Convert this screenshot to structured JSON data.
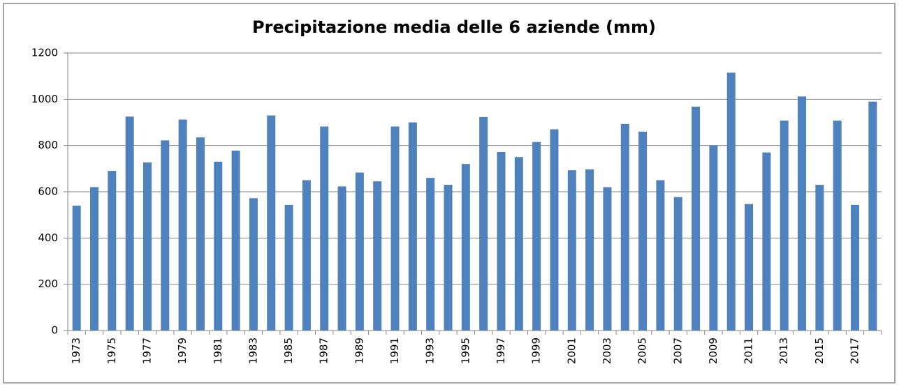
{
  "chart_data": {
    "type": "bar",
    "title": "Precipitazione media delle 6 aziende (mm)",
    "categories": [
      "1973",
      null,
      "1975",
      null,
      "1977",
      null,
      "1979",
      null,
      "1981",
      null,
      "1983",
      null,
      "1985",
      null,
      "1987",
      null,
      "1989",
      null,
      "1991",
      null,
      "1993",
      null,
      "1995",
      null,
      "1997",
      null,
      "1999",
      null,
      "2001",
      null,
      "2003",
      null,
      "2005",
      null,
      "2007",
      null,
      "2009",
      null,
      "2011",
      null,
      "2013",
      null,
      "2015",
      null,
      "2017",
      null
    ],
    "values": [
      540,
      620,
      690,
      925,
      727,
      822,
      912,
      835,
      730,
      778,
      572,
      930,
      543,
      650,
      882,
      623,
      683,
      645,
      882,
      900,
      660,
      630,
      720,
      923,
      772,
      750,
      815,
      870,
      693,
      697,
      620,
      893,
      860,
      650,
      577,
      968,
      800,
      1115,
      547,
      770,
      908,
      1012,
      630,
      908,
      543,
      990
    ],
    "color": "#4f81bd",
    "ylim": [
      0,
      1200
    ],
    "yticks": [
      0,
      200,
      400,
      600,
      800,
      1000,
      1200
    ],
    "grid": true
  }
}
